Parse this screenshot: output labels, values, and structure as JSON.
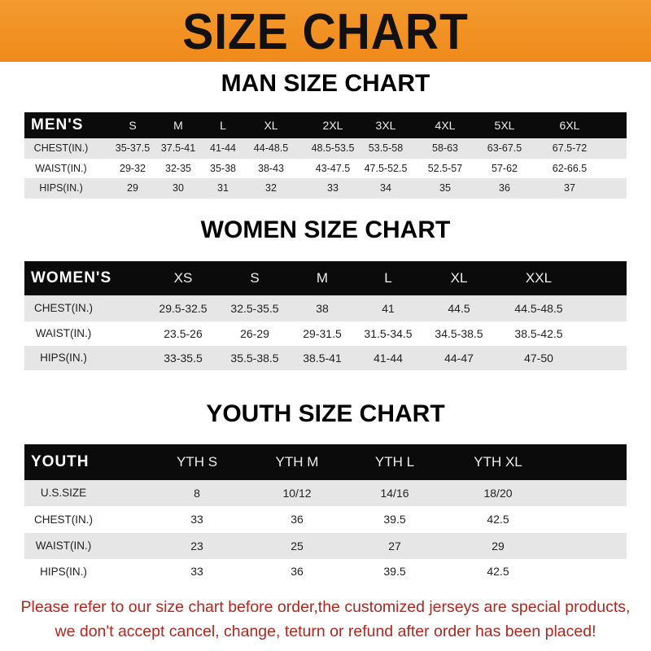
{
  "banner_title": "SIZE CHART",
  "men": {
    "title": "MAN SIZE CHART",
    "header": [
      "MEN'S",
      "S",
      "M",
      "L",
      "XL",
      "2XL",
      "3XL",
      "4XL",
      "5XL",
      "6XL"
    ],
    "rows": [
      [
        "CHEST(IN.)",
        "35-37.5",
        "37.5-41",
        "41-44",
        "44-48.5",
        "48.5-53.5",
        "53.5-58",
        "58-63",
        "63-67.5",
        "67.5-72"
      ],
      [
        "WAIST(IN.)",
        "29-32",
        "32-35",
        "35-38",
        "38-43",
        "43-47.5",
        "47.5-52.5",
        "52.5-57",
        "57-62",
        "62-66.5"
      ],
      [
        "HIPS(IN.)",
        "29",
        "30",
        "31",
        "32",
        "33",
        "34",
        "35",
        "36",
        "37"
      ]
    ]
  },
  "women": {
    "title": "WOMEN SIZE CHART",
    "header": [
      "WOMEN'S",
      "XS",
      "S",
      "M",
      "L",
      "XL",
      "XXL"
    ],
    "rows": [
      [
        "CHEST(IN.)",
        "29.5-32.5",
        "32.5-35.5",
        "38",
        "41",
        "44.5",
        "44.5-48.5"
      ],
      [
        "WAIST(IN.)",
        "23.5-26",
        "26-29",
        "29-31.5",
        "31.5-34.5",
        "34.5-38.5",
        "38.5-42.5"
      ],
      [
        "HIPS(IN.)",
        "33-35.5",
        "35.5-38.5",
        "38.5-41",
        "41-44",
        "44-47",
        "47-50"
      ]
    ]
  },
  "youth": {
    "title": "YOUTH SIZE CHART",
    "header": [
      "YOUTH",
      "YTH S",
      "YTH M",
      "YTH L",
      "YTH XL"
    ],
    "rows": [
      [
        "U.S.SIZE",
        "8",
        "10/12",
        "14/16",
        "18/20"
      ],
      [
        "CHEST(IN.)",
        "33",
        "36",
        "39.5",
        "42.5"
      ],
      [
        "WAIST(IN.)",
        "23",
        "25",
        "27",
        "29"
      ],
      [
        "HIPS(IN.)",
        "33",
        "36",
        "39.5",
        "42.5"
      ]
    ]
  },
  "footer": {
    "line1": "Please refer to our size chart before order,the customized jerseys are special products,",
    "line2": "we don't accept cancel, change, teturn or refund after order has been placed!"
  },
  "colors": {
    "banner": "#f08a1c",
    "header_row": "#0b0b0b",
    "stripe": "#e6e6e6",
    "notice_text": "#b3261e"
  }
}
